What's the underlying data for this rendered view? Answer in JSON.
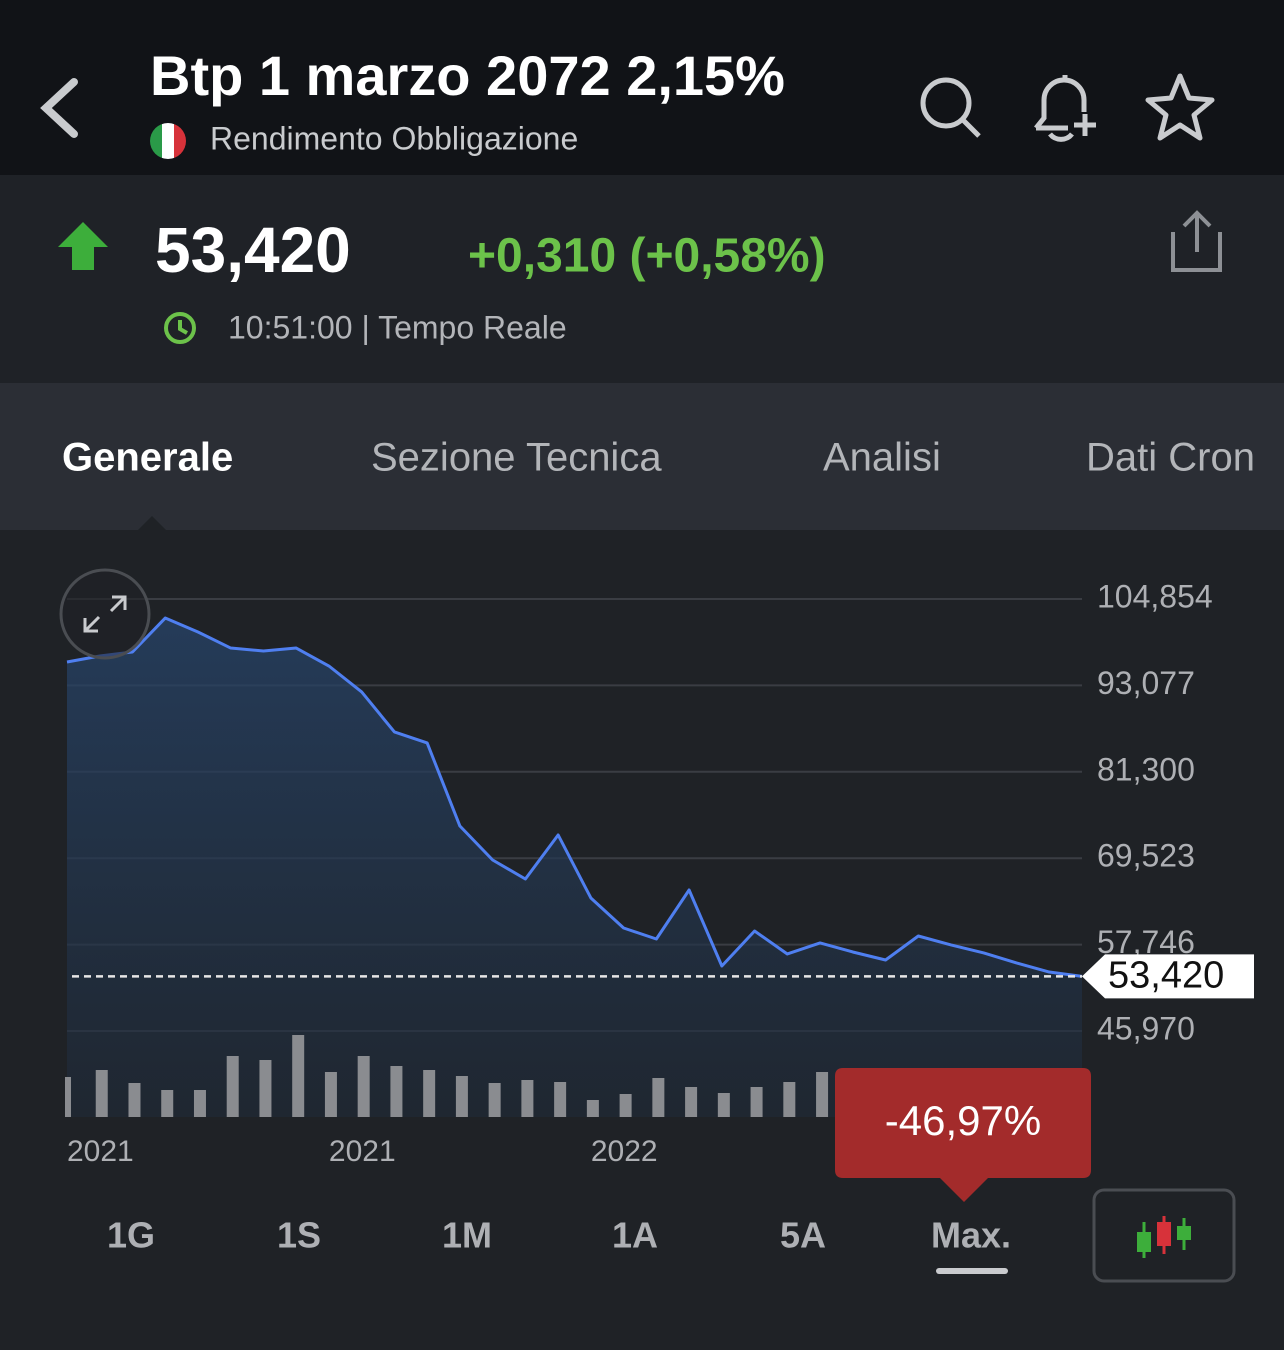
{
  "header": {
    "title": "Btp 1 marzo 2072 2,15%",
    "subtitle": "Rendimento Obbligazione"
  },
  "quote": {
    "price": "53,420",
    "change": "+0,310 (+0,58%)",
    "time": "10:51:00 | Tempo Reale"
  },
  "tabs": [
    "Generale",
    "Sezione Tecnica",
    "Analisi",
    "Dati Cron"
  ],
  "ranges": [
    "1G",
    "1S",
    "1M",
    "1A",
    "5A",
    "Max."
  ],
  "chart_data": {
    "type": "area",
    "categories": [
      "2021",
      null,
      null,
      null,
      null,
      null,
      null,
      null,
      "2021",
      null,
      null,
      null,
      null,
      null,
      null,
      null,
      "2022",
      null,
      null,
      null,
      null,
      null,
      null,
      null,
      null,
      null,
      null,
      null,
      null,
      null,
      null,
      null
    ],
    "values": [
      96.27,
      97.08,
      97.63,
      102.26,
      100.36,
      98.17,
      97.77,
      98.17,
      95.72,
      92.18,
      86.73,
      85.23,
      73.91,
      69.28,
      66.69,
      72.69,
      64.1,
      60.01,
      58.51,
      65.19,
      54.83,
      59.6,
      56.47,
      57.97,
      56.74,
      55.65,
      58.92,
      57.7,
      56.61,
      55.24,
      54.01,
      53.42
    ],
    "color": "#4f7ff0",
    "volume": [
      40,
      47,
      34,
      27,
      27,
      61,
      57,
      82,
      45,
      61,
      51,
      47,
      41,
      34,
      37,
      35,
      17,
      23,
      39,
      30,
      24,
      30,
      35,
      45,
      null,
      null,
      null,
      null,
      null,
      null,
      null,
      null
    ],
    "y2lim": [
      0,
      100
    ],
    "ylim": [
      45.97,
      104.854
    ],
    "yticks": [
      {
        "value": 104.854,
        "label": "104,854"
      },
      {
        "value": 93.077,
        "label": "93,077"
      },
      {
        "value": 81.3,
        "label": "81,300"
      },
      {
        "value": 69.523,
        "label": "69,523"
      },
      {
        "value": 57.746,
        "label": "57,746"
      },
      {
        "value": 45.97,
        "label": "45,970"
      }
    ],
    "last_value": {
      "value": 53.42,
      "label": "53,420"
    },
    "change_label": "-46,97%",
    "grid": true
  }
}
